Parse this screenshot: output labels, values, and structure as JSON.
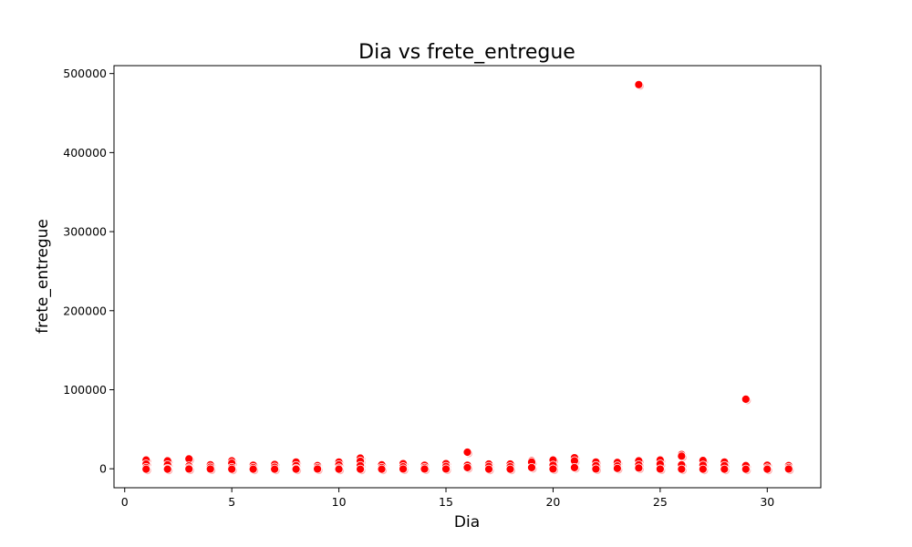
{
  "chart_data": {
    "type": "scatter",
    "title": "Dia vs frete_entregue",
    "xlabel": "Dia",
    "ylabel": "frete_entregue",
    "xlim": [
      -0.5,
      32.5
    ],
    "ylim": [
      -24000,
      510000
    ],
    "xticks": [
      0,
      5,
      10,
      15,
      20,
      25,
      30
    ],
    "yticks": [
      0,
      100000,
      200000,
      300000,
      400000,
      500000
    ],
    "grid": false,
    "marker_color": "#ff0000",
    "marker_faint_color": "#ffb3b3",
    "points": [
      {
        "x": 1,
        "y": 11000
      },
      {
        "x": 1,
        "y": 6000
      },
      {
        "x": 1,
        "y": 1500
      },
      {
        "x": 1,
        "y": -500
      },
      {
        "x": 2,
        "y": 10000
      },
      {
        "x": 2,
        "y": 5000
      },
      {
        "x": 2,
        "y": 500
      },
      {
        "x": 2,
        "y": -500
      },
      {
        "x": 3,
        "y": 12500
      },
      {
        "x": 3,
        "y": 3500
      },
      {
        "x": 3,
        "y": 1000
      },
      {
        "x": 3,
        "y": -300
      },
      {
        "x": 4,
        "y": 5000
      },
      {
        "x": 4,
        "y": 2000
      },
      {
        "x": 4,
        "y": -300
      },
      {
        "x": 5,
        "y": 10000
      },
      {
        "x": 5,
        "y": 7000
      },
      {
        "x": 5,
        "y": 1500
      },
      {
        "x": 5,
        "y": -500
      },
      {
        "x": 6,
        "y": 4500
      },
      {
        "x": 6,
        "y": 1500
      },
      {
        "x": 6,
        "y": -500
      },
      {
        "x": 7,
        "y": 5500
      },
      {
        "x": 7,
        "y": 2000
      },
      {
        "x": 7,
        "y": -500
      },
      {
        "x": 8,
        "y": 8500
      },
      {
        "x": 8,
        "y": 4000
      },
      {
        "x": 8,
        "y": 500
      },
      {
        "x": 8,
        "y": -500
      },
      {
        "x": 9,
        "y": 4000
      },
      {
        "x": 9,
        "y": 1500
      },
      {
        "x": 9,
        "y": -300
      },
      {
        "x": 10,
        "y": 8500
      },
      {
        "x": 10,
        "y": 5000
      },
      {
        "x": 10,
        "y": 1000
      },
      {
        "x": 10,
        "y": -500
      },
      {
        "x": 11,
        "y": 13500
      },
      {
        "x": 11,
        "y": 9500
      },
      {
        "x": 11,
        "y": 4000
      },
      {
        "x": 11,
        "y": -500
      },
      {
        "x": 12,
        "y": 5000
      },
      {
        "x": 12,
        "y": 1500
      },
      {
        "x": 12,
        "y": -500
      },
      {
        "x": 13,
        "y": 6500
      },
      {
        "x": 13,
        "y": 2500
      },
      {
        "x": 13,
        "y": -300
      },
      {
        "x": 14,
        "y": 4500
      },
      {
        "x": 14,
        "y": 1500
      },
      {
        "x": 14,
        "y": -300
      },
      {
        "x": 15,
        "y": 6500
      },
      {
        "x": 15,
        "y": 3000
      },
      {
        "x": 15,
        "y": -300
      },
      {
        "x": 16,
        "y": 21000
      },
      {
        "x": 16,
        "y": 4500
      },
      {
        "x": 16,
        "y": 1500
      },
      {
        "x": 17,
        "y": 6000
      },
      {
        "x": 17,
        "y": 3000
      },
      {
        "x": 17,
        "y": -500
      },
      {
        "x": 18,
        "y": 6000
      },
      {
        "x": 18,
        "y": 2500
      },
      {
        "x": 18,
        "y": -500
      },
      {
        "x": 19,
        "y": 10000
      },
      {
        "x": 19,
        "y": 8500
      },
      {
        "x": 19,
        "y": 1500
      },
      {
        "x": 20,
        "y": 11000
      },
      {
        "x": 20,
        "y": 4500
      },
      {
        "x": 20,
        "y": -300
      },
      {
        "x": 21,
        "y": 14000
      },
      {
        "x": 21,
        "y": 10000
      },
      {
        "x": 21,
        "y": 1500
      },
      {
        "x": 22,
        "y": 8500
      },
      {
        "x": 22,
        "y": 4000
      },
      {
        "x": 22,
        "y": -300
      },
      {
        "x": 23,
        "y": 8000
      },
      {
        "x": 23,
        "y": 3500
      },
      {
        "x": 23,
        "y": 500
      },
      {
        "x": 24,
        "y": 486000
      },
      {
        "x": 24,
        "y": 10000
      },
      {
        "x": 24,
        "y": 5000
      },
      {
        "x": 24,
        "y": 1000
      },
      {
        "x": 25,
        "y": 11000
      },
      {
        "x": 25,
        "y": 6000
      },
      {
        "x": 25,
        "y": -300
      },
      {
        "x": 26,
        "y": 18000
      },
      {
        "x": 26,
        "y": 16000
      },
      {
        "x": 26,
        "y": 5000
      },
      {
        "x": 26,
        "y": -500
      },
      {
        "x": 27,
        "y": 10500
      },
      {
        "x": 27,
        "y": 4500
      },
      {
        "x": 27,
        "y": -500
      },
      {
        "x": 28,
        "y": 8500
      },
      {
        "x": 28,
        "y": 4000
      },
      {
        "x": 28,
        "y": -500
      },
      {
        "x": 29,
        "y": 88000
      },
      {
        "x": 29,
        "y": 4000
      },
      {
        "x": 29,
        "y": -500
      },
      {
        "x": 30,
        "y": 4500
      },
      {
        "x": 30,
        "y": 1000
      },
      {
        "x": 30,
        "y": -500
      },
      {
        "x": 31,
        "y": 4000
      },
      {
        "x": 31,
        "y": 1500
      },
      {
        "x": 31,
        "y": -300
      }
    ]
  }
}
